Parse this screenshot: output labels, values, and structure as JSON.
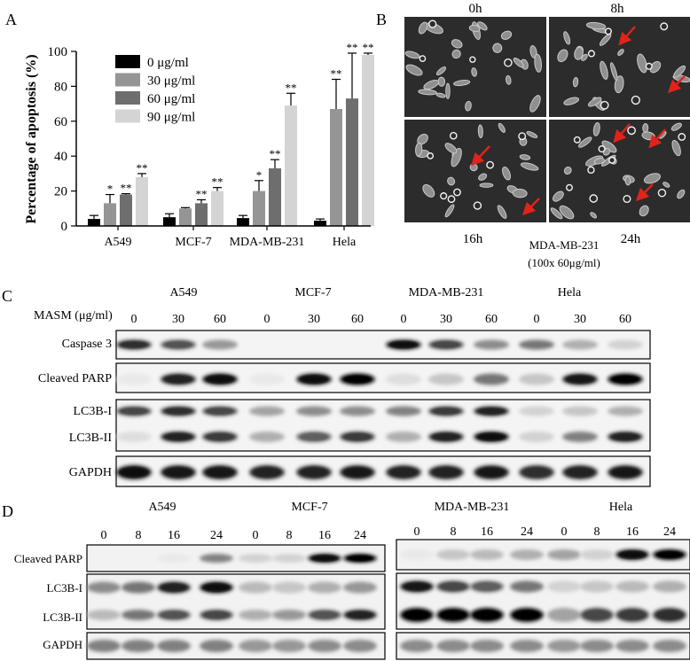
{
  "panels": {
    "A": "A",
    "B": "B",
    "C": "C",
    "D": "D"
  },
  "chart_data": {
    "type": "bar",
    "ylabel": "Percentage of apoptosis (%)",
    "ylim": [
      0,
      100
    ],
    "yticks": [
      "0",
      "20",
      "40",
      "60",
      "80",
      "100"
    ],
    "categories": [
      "A549",
      "MCF-7",
      "MDA-MB-231",
      "Hela"
    ],
    "legend_position": "top-left",
    "series": [
      {
        "name": "0 μg/ml",
        "color": "#000000",
        "values": [
          4,
          5,
          4.5,
          3
        ],
        "err": [
          2,
          2,
          1.5,
          1
        ],
        "sig": [
          "",
          "",
          "",
          ""
        ]
      },
      {
        "name": "30 μg/ml",
        "color": "#959595",
        "values": [
          13,
          10,
          20,
          67
        ],
        "err": [
          5,
          0.5,
          6,
          17
        ],
        "sig": [
          "*",
          "",
          "*",
          "**"
        ]
      },
      {
        "name": "60 μg/ml",
        "color": "#6e6e6e",
        "values": [
          18,
          13,
          33,
          73
        ],
        "err": [
          0.5,
          2,
          5,
          26
        ],
        "sig": [
          "**",
          "**",
          "**",
          "**"
        ]
      },
      {
        "name": "90 μg/ml",
        "color": "#d4d4d4",
        "values": [
          28,
          20,
          69,
          98
        ],
        "err": [
          2,
          2,
          7,
          1
        ],
        "sig": [
          "**",
          "**",
          "**",
          "**"
        ]
      }
    ]
  },
  "panelB": {
    "times": [
      "0h",
      "8h",
      "16h",
      "24h"
    ],
    "caption_line1": "MDA-MB-231",
    "caption_line2": "(100x 60μg/ml)"
  },
  "panelC": {
    "dose_label": "MASM (μg/ml)",
    "cell_lines": [
      "A549",
      "MCF-7",
      "MDA-MB-231",
      "Hela"
    ],
    "doses": [
      "0",
      "30",
      "60",
      "0",
      "30",
      "60",
      "0",
      "30",
      "60",
      "0",
      "30",
      "60"
    ],
    "rows": [
      "Caspase 3",
      "Cleaved PARP",
      "LC3B-I",
      "LC3B-II",
      "GAPDH"
    ]
  },
  "panelD": {
    "cell_lines": [
      "A549",
      "MCF-7",
      "MDA-MB-231",
      "Hela"
    ],
    "times_left": [
      "0",
      "8",
      "16",
      "24",
      "0",
      "8",
      "16",
      "24"
    ],
    "times_right": [
      "0",
      "8",
      "16",
      "24",
      "0",
      "8",
      "16",
      "24"
    ],
    "rows": [
      "Cleaved PARP",
      "LC3B-I",
      "LC3B-II",
      "GAPDH"
    ]
  }
}
